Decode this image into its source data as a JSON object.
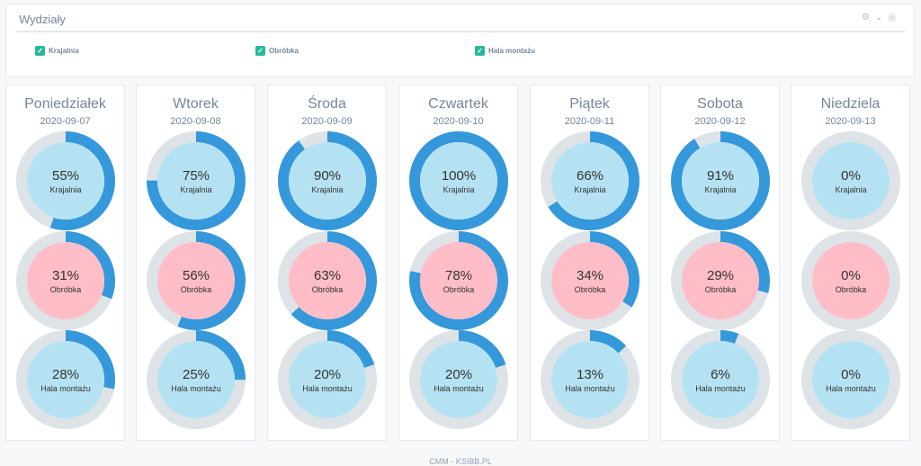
{
  "panel": {
    "title": "Wydziały",
    "tools": [
      "gear-icon",
      "chevron-down-icon",
      "eye-slash-icon"
    ],
    "filters": [
      {
        "label": "Krajalnia",
        "checked": true
      },
      {
        "label": "Obróbka",
        "checked": true
      },
      {
        "label": "Hala montażu",
        "checked": true
      }
    ]
  },
  "colors": {
    "ring": "#3498db",
    "track": "#dde3e6",
    "blue_fill": "#b5e2f2",
    "pink_fill": "#ffbdc8"
  },
  "days": [
    {
      "name": "Poniedziałek",
      "date": "2020-09-07",
      "gauges": [
        {
          "pct": 55,
          "label": "55%",
          "dept": "Krajalnia"
        },
        {
          "pct": 31,
          "label": "31%",
          "dept": "Obróbka"
        },
        {
          "pct": 28,
          "label": "28%",
          "dept": "Hala montażu"
        }
      ]
    },
    {
      "name": "Wtorek",
      "date": "2020-09-08",
      "gauges": [
        {
          "pct": 75,
          "label": "75%",
          "dept": "Krajalnia"
        },
        {
          "pct": 56,
          "label": "56%",
          "dept": "Obróbka"
        },
        {
          "pct": 25,
          "label": "25%",
          "dept": "Hala montażu"
        }
      ]
    },
    {
      "name": "Środa",
      "date": "2020-09-09",
      "gauges": [
        {
          "pct": 90,
          "label": "90%",
          "dept": "Krajalnia"
        },
        {
          "pct": 63,
          "label": "63%",
          "dept": "Obróbka"
        },
        {
          "pct": 20,
          "label": "20%",
          "dept": "Hala montażu"
        }
      ]
    },
    {
      "name": "Czwartek",
      "date": "2020-09-10",
      "gauges": [
        {
          "pct": 100,
          "label": "100%",
          "dept": "Krajalnia"
        },
        {
          "pct": 78,
          "label": "78%",
          "dept": "Obróbka"
        },
        {
          "pct": 20,
          "label": "20%",
          "dept": "Hala montażu"
        }
      ]
    },
    {
      "name": "Piątek",
      "date": "2020-09-11",
      "gauges": [
        {
          "pct": 66,
          "label": "66%",
          "dept": "Krajalnia"
        },
        {
          "pct": 34,
          "label": "34%",
          "dept": "Obróbka"
        },
        {
          "pct": 13,
          "label": "13%",
          "dept": "Hala montażu"
        }
      ]
    },
    {
      "name": "Sobota",
      "date": "2020-09-12",
      "gauges": [
        {
          "pct": 91,
          "label": "91%",
          "dept": "Krajalnia"
        },
        {
          "pct": 29,
          "label": "29%",
          "dept": "Obróbka"
        },
        {
          "pct": 6,
          "label": "6%",
          "dept": "Hala montażu"
        }
      ]
    },
    {
      "name": "Niedziela",
      "date": "2020-09-13",
      "gauges": [
        {
          "pct": 0,
          "label": "0%",
          "dept": "Krajalnia"
        },
        {
          "pct": 0,
          "label": "0%",
          "dept": "Obróbka"
        },
        {
          "pct": 0,
          "label": "0%",
          "dept": "Hala montażu"
        }
      ]
    }
  ],
  "footer": "CMM - KSIBB.PL"
}
